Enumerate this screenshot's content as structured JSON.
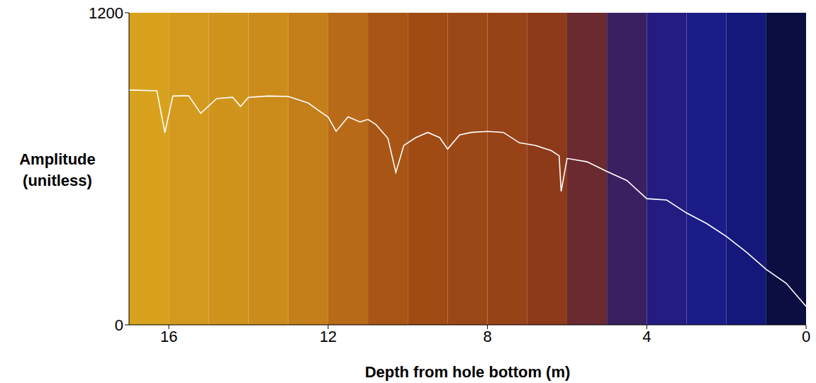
{
  "chart_data": {
    "type": "line",
    "x_label": "Depth from hole bottom (m)",
    "y_label": "Amplitude (unitless)",
    "xlim": [
      17,
      0
    ],
    "xticks": [
      16,
      12,
      8,
      4,
      0
    ],
    "ylim": [
      0,
      1200
    ],
    "yticks": [
      0,
      1200
    ],
    "grid": false,
    "x": [
      17,
      16.3,
      16.1,
      15.9,
      15.5,
      15.2,
      14.8,
      14.4,
      14.2,
      14,
      13.5,
      13,
      12.5,
      12.2,
      12,
      11.8,
      11.5,
      11.2,
      11,
      10.8,
      10.5,
      10.3,
      10.1,
      9.8,
      9.5,
      9.2,
      9,
      8.7,
      8.4,
      8,
      7.6,
      7.2,
      6.8,
      6.4,
      6.2,
      6.15,
      6,
      5.5,
      5,
      4.5,
      4,
      3.5,
      3,
      2.5,
      2,
      1.5,
      1,
      0.5,
      0
    ],
    "series": [
      {
        "color": "#ffffff",
        "values": [
          903,
          900,
          739,
          880,
          881,
          813,
          870,
          875,
          840,
          875,
          880,
          878,
          853,
          820,
          799,
          744,
          800,
          780,
          790,
          770,
          717,
          586,
          690,
          720,
          740,
          720,
          676,
          730,
          740,
          744,
          740,
          700,
          690,
          670,
          650,
          513,
          640,
          627,
          590,
          555,
          485,
          480,
          430,
          390,
          340,
          280,
          213,
          160,
          71
        ]
      }
    ],
    "background": {
      "x_edges": [
        17,
        16,
        15,
        14,
        13,
        12,
        11,
        10,
        9,
        8,
        7,
        6,
        5,
        4,
        3,
        2,
        1,
        0
      ],
      "colors": [
        "#d8a21e",
        "#d49a1e",
        "#d0941c",
        "#cc8c1c",
        "#c47e1a",
        "#b86a18",
        "#a95515",
        "#a04a14",
        "#9c4716",
        "#984218",
        "#8c3a1a",
        "#6a2a30",
        "#3a2060",
        "#241c80",
        "#1c1c88",
        "#14187a",
        "#0a0e40"
      ]
    }
  }
}
